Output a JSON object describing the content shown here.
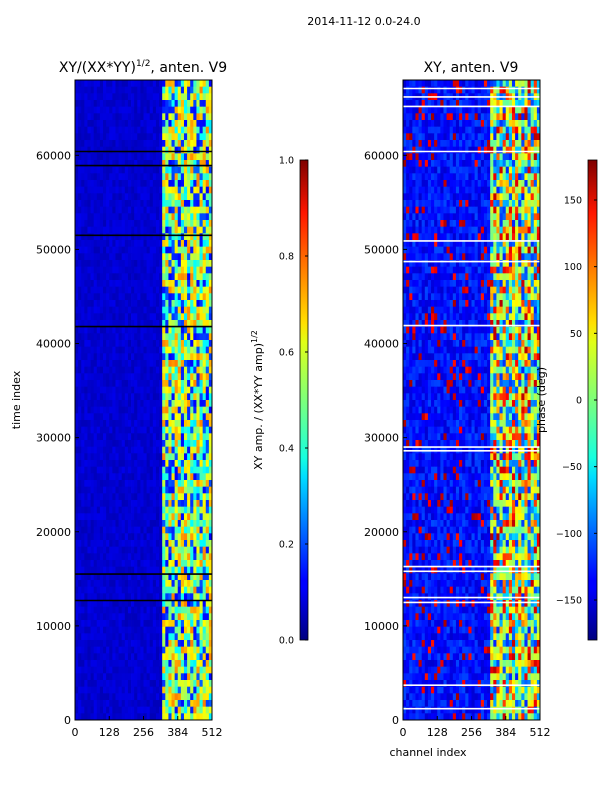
{
  "suptitle": "2014-11-12 0.0-24.0",
  "chart_data": [
    {
      "type": "heatmap",
      "title": "XY/(XX*YY)^(1/2), anten. V9",
      "title_main": "XY/(XX*YY)",
      "title_sup": "1/2",
      "title_tail": ", anten. V9",
      "xlabel": "",
      "ylabel": "time index",
      "xlim": [
        0,
        512
      ],
      "ylim": [
        0,
        68000
      ],
      "xticks": [
        0,
        128,
        256,
        384,
        512
      ],
      "yticks": [
        0,
        10000,
        20000,
        30000,
        40000,
        50000,
        60000
      ],
      "colormap": "jet",
      "colorbar": {
        "label": "XY amp. / (XX*YY amp)^(1/2)",
        "label_main": "XY amp. / (XX*YY amp)",
        "label_sup": "1/2",
        "range": [
          0.0,
          1.0
        ],
        "ticks": [
          "0.0",
          "0.2",
          "0.4",
          "0.6",
          "0.8",
          "1.0"
        ]
      },
      "horizontal_lines": [
        12700,
        15500,
        41800,
        51500,
        58900,
        60400
      ],
      "active_band_channels": [
        330,
        510
      ],
      "background_value": 0.08
    },
    {
      "type": "heatmap",
      "title": "XY, anten. V9",
      "xlabel": "channel index",
      "ylabel": "",
      "xlim": [
        0,
        512
      ],
      "ylim": [
        0,
        68000
      ],
      "xticks": [
        0,
        128,
        256,
        384,
        512
      ],
      "yticks": [
        0,
        10000,
        20000,
        30000,
        40000,
        50000,
        60000
      ],
      "colormap": "jet",
      "colorbar": {
        "label": "phase (deg)",
        "range": [
          -180,
          180
        ],
        "ticks": [
          "150",
          "100",
          "50",
          "0",
          "−50",
          "−100",
          "−150"
        ],
        "tick_values": [
          150,
          100,
          50,
          0,
          -50,
          -100,
          -150
        ]
      },
      "horizontal_lines": [
        1200,
        3700,
        12500,
        13000,
        15800,
        16300,
        28600,
        29000,
        41900,
        48700,
        50900,
        60400,
        65200,
        66200,
        67100
      ],
      "active_band_channels": [
        330,
        510
      ],
      "background_value": -130
    }
  ]
}
